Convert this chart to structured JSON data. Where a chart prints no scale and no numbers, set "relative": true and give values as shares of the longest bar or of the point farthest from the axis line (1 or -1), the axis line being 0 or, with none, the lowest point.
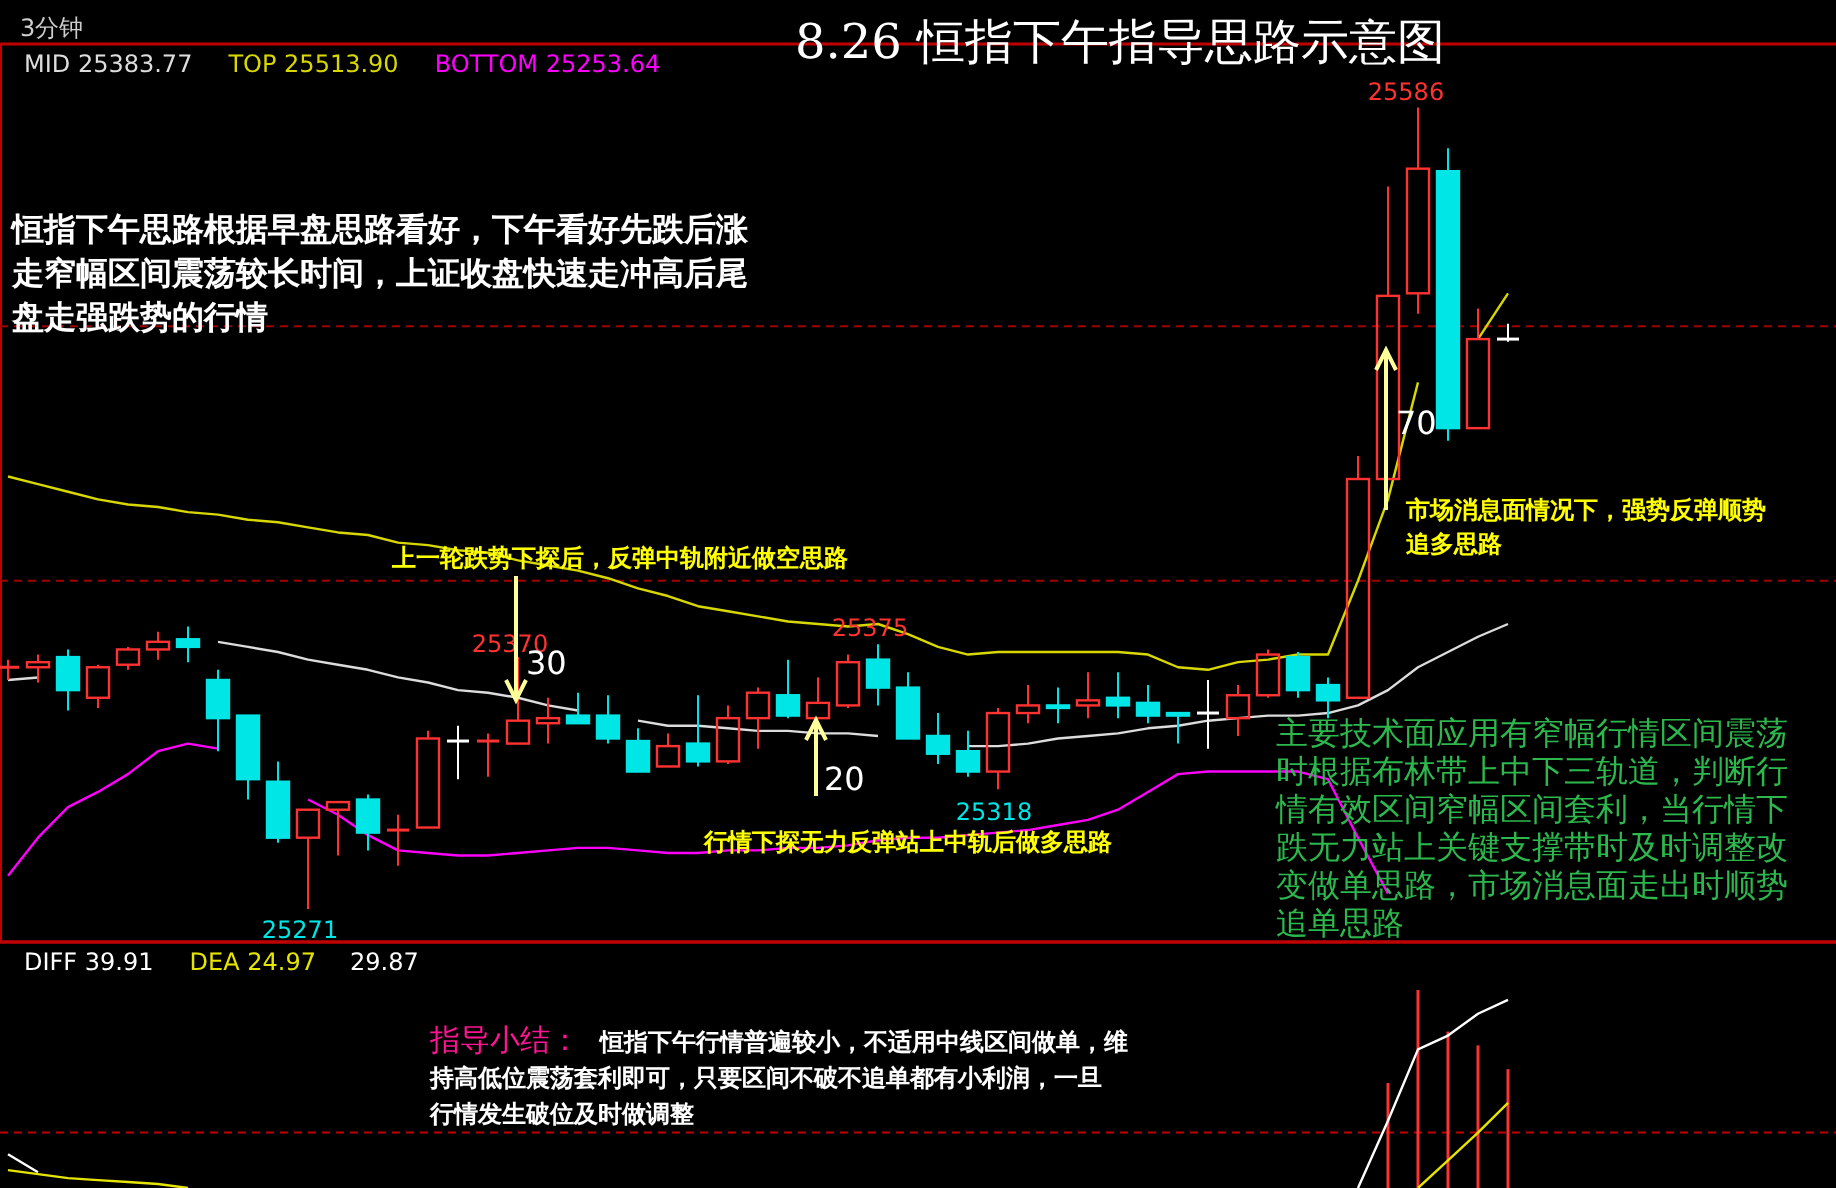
{
  "chart_data": [
    {
      "type": "candlestick",
      "title": "8.26   恒指下午指导思路示意图",
      "categories": [
        null,
        null,
        null,
        null,
        null,
        null,
        null,
        null,
        null,
        null,
        null,
        null,
        null,
        null,
        null,
        null,
        null,
        null,
        null,
        null,
        null,
        null,
        null,
        null,
        null,
        null,
        null,
        null,
        null,
        null,
        null,
        null,
        null,
        null,
        null,
        null,
        null,
        null,
        null,
        null,
        null,
        null,
        null,
        null,
        null,
        null,
        null,
        null,
        null,
        null,
        null
      ],
      "ohlc": [
        [
          25366,
          25369,
          25361,
          25366
        ],
        [
          25366,
          25371,
          25360,
          25368
        ],
        [
          25370,
          25373,
          25349,
          25357
        ],
        [
          25354,
          25367,
          25350,
          25366
        ],
        [
          25367,
          25374,
          25365,
          25373
        ],
        [
          25373,
          25380,
          25369,
          25376
        ],
        [
          25377,
          25382,
          25368,
          25374
        ],
        [
          25361,
          25365,
          25333,
          25346
        ],
        [
          25347,
          25347,
          25314,
          25322
        ],
        [
          25321,
          25329,
          25297,
          25299
        ],
        [
          25299,
          25310,
          25271,
          25310
        ],
        [
          25310,
          25313,
          25292,
          25313
        ],
        [
          25314,
          25316,
          25294,
          25301
        ],
        [
          25302,
          25308,
          25288,
          25302
        ],
        [
          25303,
          25341,
          25303,
          25338
        ],
        [
          25337,
          25343,
          25322,
          25337
        ],
        [
          25337,
          25340,
          25323,
          25337
        ],
        [
          25336,
          25370,
          25336,
          25345
        ],
        [
          25344,
          25354,
          25336,
          25346
        ],
        [
          25347,
          25356,
          25344,
          25344
        ],
        [
          25347,
          25355,
          25336,
          25338
        ],
        [
          25337,
          25342,
          25325,
          25325
        ],
        [
          25327,
          25340,
          25327,
          25335
        ],
        [
          25336,
          25355,
          25327,
          25329
        ],
        [
          25329,
          25351,
          25328,
          25346
        ],
        [
          25346,
          25358,
          25334,
          25356
        ],
        [
          25355,
          25369,
          25346,
          25347
        ],
        [
          25346,
          25362,
          25346,
          25352
        ],
        [
          25351,
          25371,
          25350,
          25368
        ],
        [
          25369,
          25375,
          25351,
          25358
        ],
        [
          25358,
          25364,
          25338,
          25338
        ],
        [
          25339,
          25348,
          25328,
          25332
        ],
        [
          25333,
          25341,
          25323,
          25325
        ],
        [
          25325,
          25350,
          25318,
          25348
        ],
        [
          25348,
          25359,
          25344,
          25351
        ],
        [
          25351,
          25358,
          25344,
          25350
        ],
        [
          25351,
          25364,
          25346,
          25353
        ],
        [
          25354,
          25364,
          25346,
          25351
        ],
        [
          25352,
          25359,
          25344,
          25347
        ],
        [
          25348,
          25348,
          25336,
          25347
        ],
        [
          25348,
          25361,
          25334,
          25348
        ],
        [
          25346,
          25359,
          25339,
          25355
        ],
        [
          25355,
          25373,
          25354,
          25371
        ],
        [
          25370,
          25372,
          25354,
          25357
        ],
        [
          25359,
          25362,
          25346,
          25353
        ],
        [
          25354,
          25449,
          25354,
          25440
        ],
        [
          25440,
          25555,
          25440,
          25512
        ],
        [
          25513,
          25586,
          25505,
          25562
        ],
        [
          25561,
          25570,
          25455,
          25460
        ],
        [
          25460,
          25507,
          25460,
          25495
        ],
        [
          25495,
          25501,
          25494,
          25495
        ]
      ],
      "colors": [
        "#ff3232",
        "#ff3232",
        "#00e5e5",
        "#ff3232",
        "#ff3232",
        "#ff3232",
        "#00e5e5",
        "#00e5e5",
        "#00e5e5",
        "#00e5e5",
        "#ff3232",
        "#ff3232",
        "#00e5e5",
        "#ff3232",
        "#ff3232",
        "#ffffff",
        "#ff3232",
        "#ff3232",
        "#ff3232",
        "#00e5e5",
        "#00e5e5",
        "#00e5e5",
        "#ff3232",
        "#00e5e5",
        "#ff3232",
        "#ff3232",
        "#00e5e5",
        "#ff3232",
        "#ff3232",
        "#00e5e5",
        "#00e5e5",
        "#00e5e5",
        "#00e5e5",
        "#ff3232",
        "#ff3232",
        "#00e5e5",
        "#ff3232",
        "#00e5e5",
        "#00e5e5",
        "#00e5e5",
        "#ffffff",
        "#ff3232",
        "#ff3232",
        "#00e5e5",
        "#00e5e5",
        "#ff3232",
        "#ff3232",
        "#ff3232",
        "#00e5e5",
        "#ff3232",
        "#ffffff"
      ],
      "series": [
        {
          "type": "line",
          "name": "MID 25383.77",
          "color": "#dcdcdc",
          "values": [
            25361,
            25362,
            null,
            null,
            null,
            null,
            null,
            25376,
            25374,
            25372,
            25369,
            25367,
            25365,
            25362,
            25360,
            25357,
            25356,
            25354,
            25351,
            25349,
            null,
            25345,
            25343,
            25343,
            25342,
            25341,
            25341,
            25340,
            25340,
            25339,
            null,
            null,
            25335,
            25335,
            25336,
            25338,
            25339,
            25340,
            25342,
            25343,
            25345,
            25346,
            25347,
            25347,
            25348,
            25351,
            25357,
            25366,
            25372,
            25378,
            25383
          ]
        },
        {
          "type": "line",
          "name": "TOP 25513.90",
          "color": "#d8d800",
          "values": [
            25441,
            25438,
            25435,
            25432,
            25430,
            25429,
            25427,
            25426,
            25424,
            25423,
            25421,
            25419,
            25418,
            25415,
            25414,
            25412,
            25411,
            25408,
            25406,
            25404,
            25401,
            25397,
            25394,
            25390,
            25388,
            25386,
            25384,
            25383,
            25382,
            25383,
            25379,
            25374,
            25371,
            25372,
            25372,
            25372,
            25372,
            25372,
            25371,
            25366,
            25365,
            25368,
            25369,
            25371,
            25371,
            25400,
            25432,
            25478,
            null,
            25495,
            25513
          ]
        },
        {
          "type": "line",
          "name": "BOTTOM 25253.64",
          "color": "#ff00ff",
          "values": [
            25284,
            25299,
            25311,
            25317,
            25324,
            25333,
            25336,
            25334,
            null,
            null,
            25314,
            25308,
            25300,
            25294,
            25293,
            25292,
            25292,
            25293,
            25294,
            25295,
            25295,
            25294,
            25293,
            25293,
            25294,
            25294,
            25295,
            25295,
            25296,
            25298,
            25299,
            25299,
            25300,
            25301,
            25302,
            25304,
            25306,
            25310,
            25317,
            25324,
            25325,
            25325,
            25325,
            25325,
            25322,
            25299,
            25277,
            null,
            null,
            null,
            null
          ]
        }
      ],
      "ylim": [
        25258,
        25611
      ],
      "yticks": [
        {
          "value": 25400,
          "label": null
        },
        {
          "value": 25500,
          "label": null
        }
      ],
      "grid": "y",
      "legend": "top left",
      "annotations": [
        "3分钟",
        "恒指下午思路根据早盘思路看好，下午看好先跌后涨走窄幅区间震荡较长时间，上证收盘快速走冲高后尾盘走强跌势的行情",
        "上一轮跌势下探后，反弹中轨附近做空思路",
        "行情下探无力反弹站上中轨后做多思路",
        "市场消息面情况下，强势反弹顺势追多思路",
        "主要技术面应用有窄幅行情区间震荡时根据布林带上中下三轨道，判断行情有效区间窄幅区间套利，当行情下跌无力站上关键支撑带时及时调整改变做单思路，市场消息面走出时顺势追单思路",
        "25586",
        "25370",
        "25375",
        "25271",
        "25318",
        "30",
        "20",
        "70"
      ]
    },
    {
      "type": "bar",
      "relative": true,
      "categories": [
        null,
        null,
        null,
        null,
        null,
        null,
        null,
        null,
        null,
        null,
        null,
        null,
        null,
        null,
        null,
        null,
        null,
        null,
        null,
        null,
        null,
        null,
        null,
        null,
        null,
        null,
        null,
        null,
        null,
        null,
        null,
        null,
        null,
        null,
        null,
        null,
        null,
        null,
        null,
        null,
        null,
        null,
        null,
        null,
        null,
        null,
        null,
        null,
        null,
        null,
        null
      ],
      "series": [
        {
          "type": "bar",
          "color": "#ff3232",
          "values": [
            null,
            null,
            null,
            null,
            null,
            null,
            null,
            null,
            null,
            null,
            null,
            null,
            null,
            null,
            null,
            null,
            null,
            null,
            null,
            null,
            null,
            null,
            null,
            null,
            null,
            null,
            null,
            null,
            null,
            null,
            null,
            null,
            null,
            null,
            null,
            null,
            null,
            null,
            null,
            null,
            null,
            null,
            null,
            null,
            null,
            null,
            0.53,
            1.0,
            0.79,
            0.72,
            0.6
          ]
        },
        {
          "type": "line",
          "name": "DIFF 39.91",
          "color": "#ffffff",
          "values": [
            0.17,
            0.08,
            null,
            null,
            null,
            null,
            null,
            null,
            null,
            null,
            null,
            null,
            null,
            null,
            null,
            null,
            null,
            null,
            null,
            null,
            null,
            null,
            null,
            null,
            null,
            null,
            null,
            null,
            null,
            null,
            null,
            null,
            null,
            null,
            null,
            null,
            null,
            null,
            null,
            null,
            null,
            null,
            null,
            null,
            null,
            0.0,
            0.34,
            0.7,
            0.77,
            0.88,
            0.95
          ]
        },
        {
          "type": "line",
          "name": "DEA 24.97",
          "color": "#e5e500",
          "values": [
            0.09,
            0.07,
            0.05,
            0.04,
            0.03,
            0.02,
            0.0,
            null,
            null,
            null,
            null,
            null,
            null,
            null,
            null,
            null,
            null,
            null,
            null,
            null,
            null,
            null,
            null,
            null,
            null,
            null,
            null,
            null,
            null,
            null,
            null,
            null,
            null,
            null,
            null,
            null,
            null,
            null,
            null,
            null,
            null,
            null,
            null,
            null,
            null,
            null,
            null,
            0.0,
            0.14,
            0.28,
            0.43
          ]
        }
      ],
      "ref_lines": [
        {
          "axis": "y",
          "value": 0.28,
          "color": "#c00000",
          "line_style": "dashed"
        }
      ],
      "legend": "top left",
      "annotations": [
        "29.87",
        "指导小结：",
        "恒指下午行情普遍较小，不适用中线区间做单，维持高低位震荡套利即可，只要区间不破不追单都有小利润，一旦行情发生破位及时做调整"
      ]
    }
  ]
}
